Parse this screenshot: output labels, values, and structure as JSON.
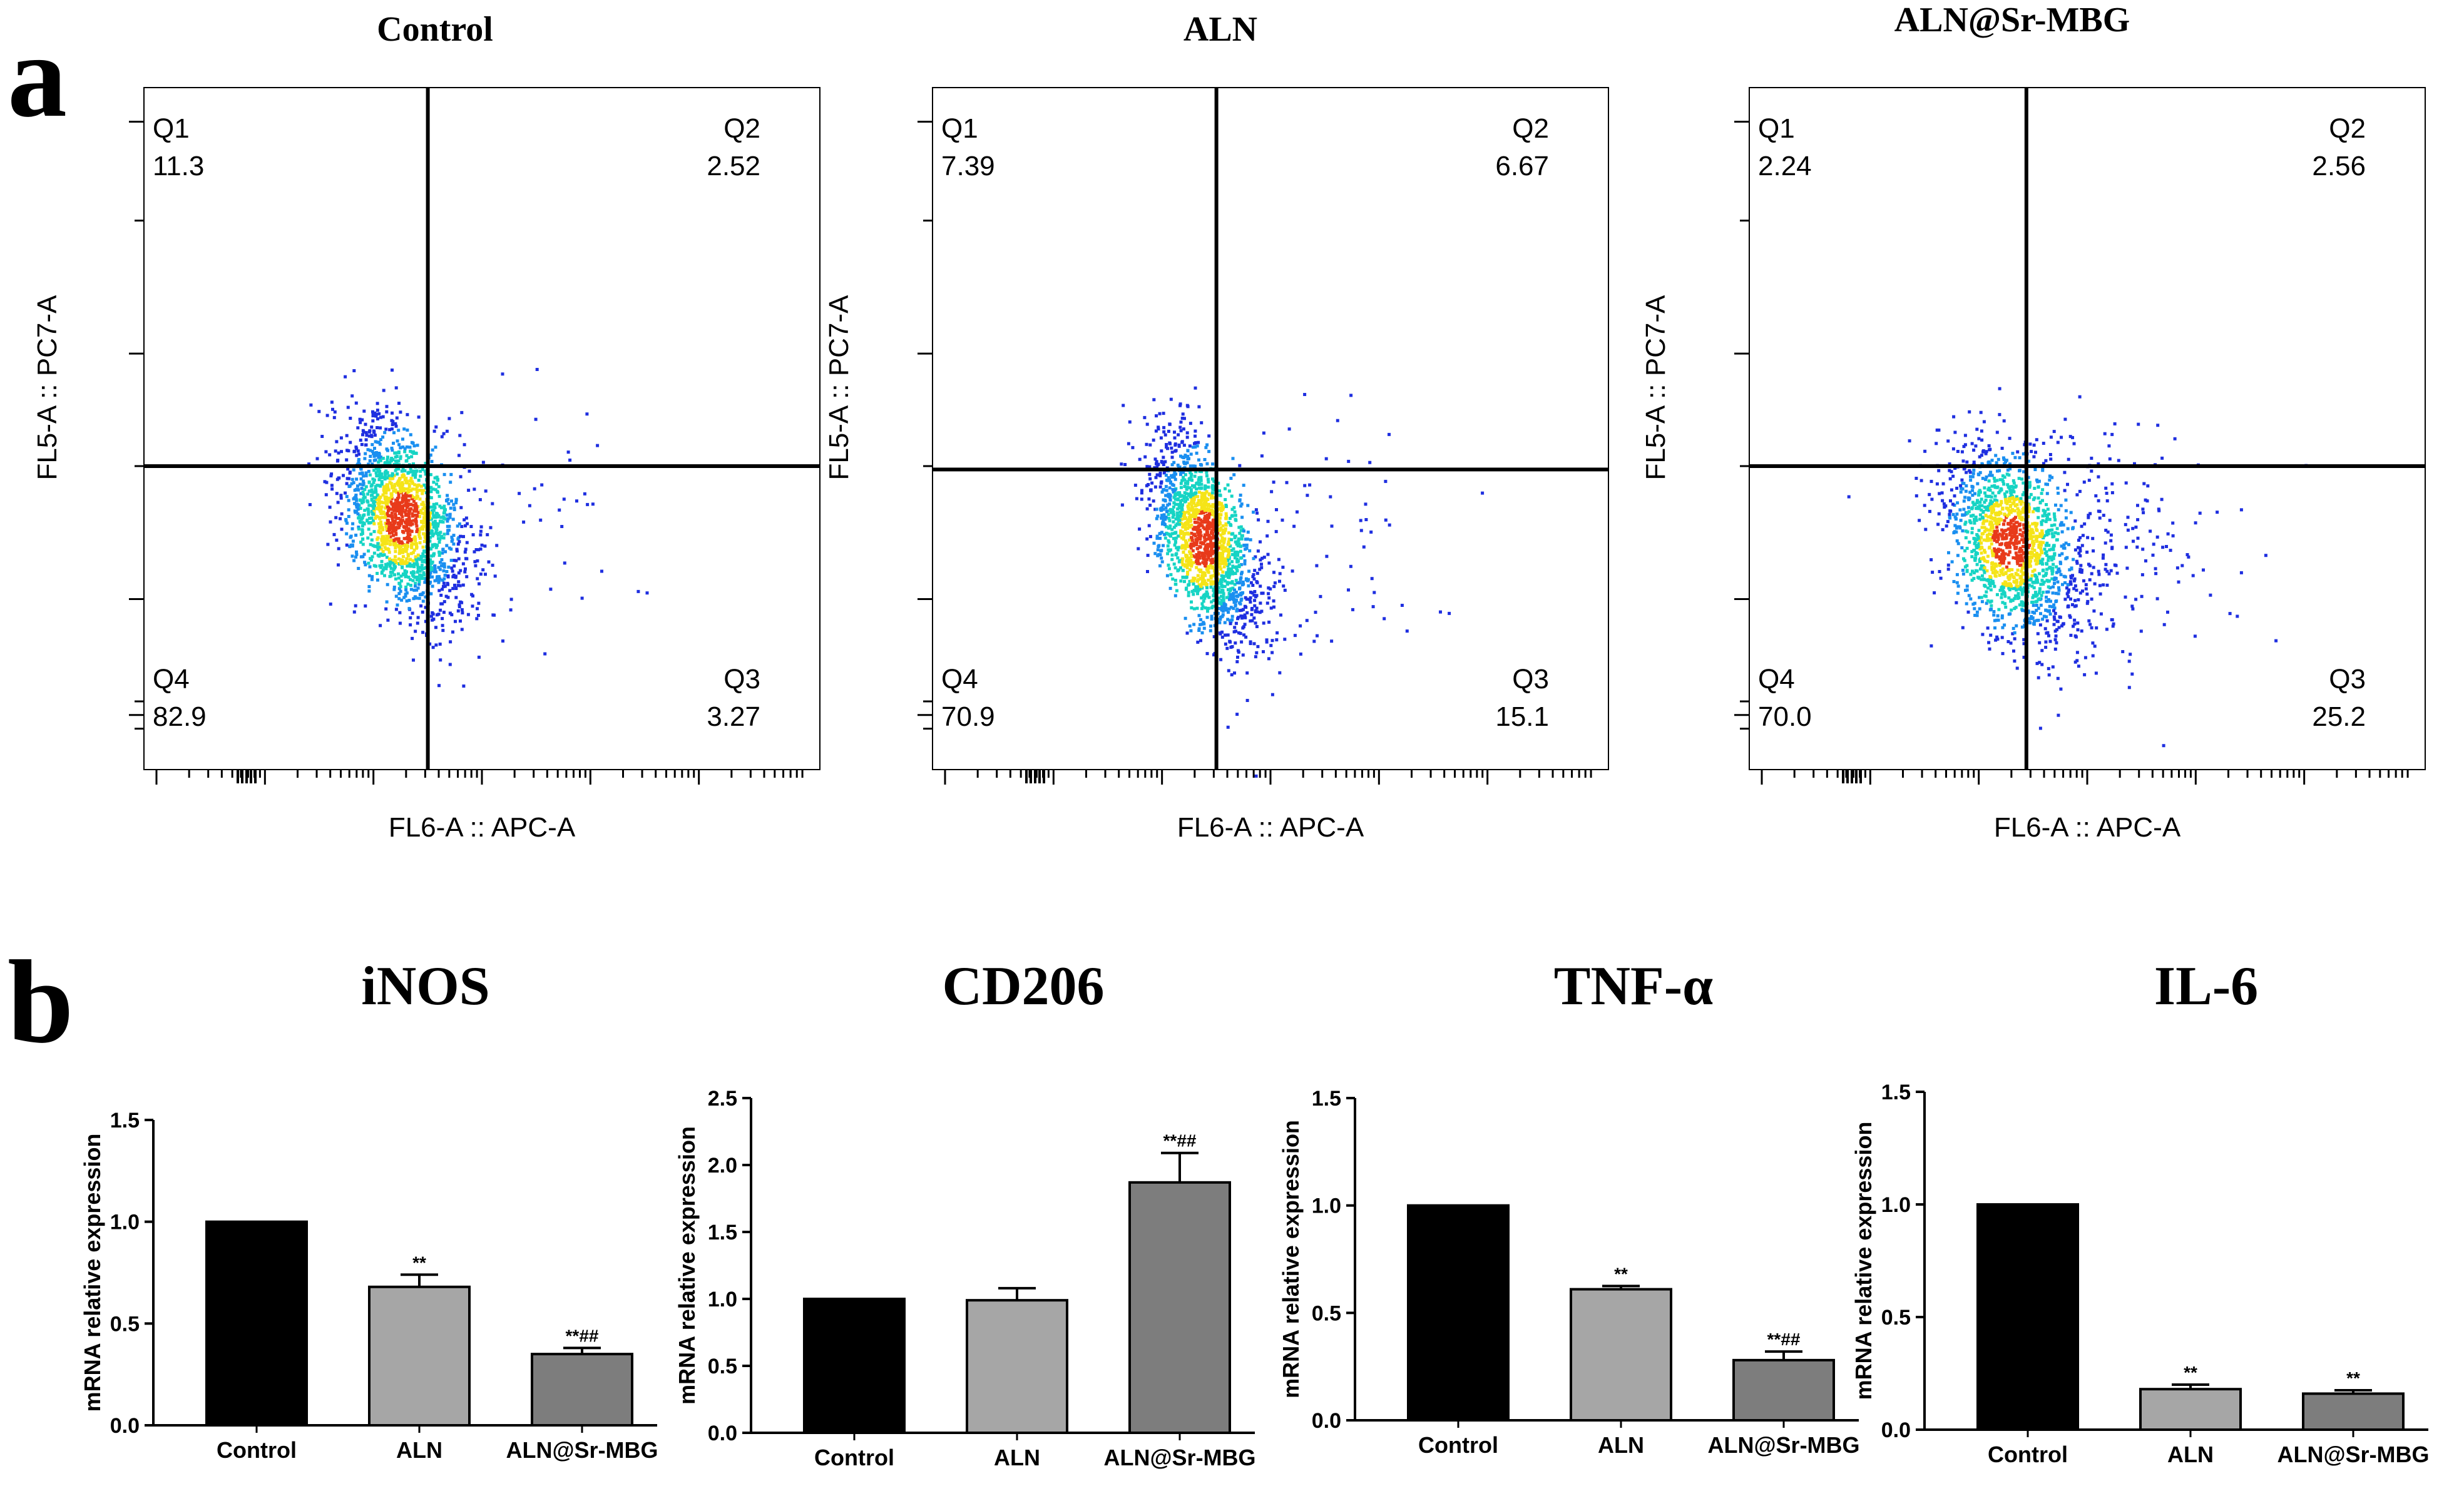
{
  "panels": {
    "a": "a",
    "b": "b"
  },
  "colors": {
    "pop_low": "#1f2fe0",
    "pop_mid": "#16d4c4",
    "pop_high": "#f5e418",
    "pop_core": "#e83a1a",
    "bar_control": "#000000",
    "bar_aln": "#a6a6a6",
    "bar_sr": "#7d7d7d"
  },
  "chart_data": [
    {
      "type": "scatter",
      "panel": "a",
      "title": "Control",
      "xlabel": "FL6-A :: APC-A",
      "ylabel": "FL5-A :: PC7-A",
      "gate": {
        "x": 0.42,
        "y": 0.555
      },
      "population": {
        "cx": 0.38,
        "cy": 0.63,
        "sx": 0.045,
        "sy": 0.07,
        "rho": 0.45,
        "n": 1700,
        "tail": 0.04
      },
      "quadrants": [
        {
          "name": "Q1",
          "value": "11.3",
          "position": "top-left"
        },
        {
          "name": "Q2",
          "value": "2.52",
          "position": "top-right"
        },
        {
          "name": "Q4",
          "value": "82.9",
          "position": "bottom-left"
        },
        {
          "name": "Q3",
          "value": "3.27",
          "position": "bottom-right"
        }
      ]
    },
    {
      "type": "scatter",
      "panel": "a",
      "title": "ALN",
      "xlabel": "FL6-A :: APC-A",
      "ylabel": "FL5-A :: PC7-A",
      "gate": {
        "x": 0.42,
        "y": 0.56
      },
      "population": {
        "cx": 0.4,
        "cy": 0.66,
        "sx": 0.04,
        "sy": 0.075,
        "rho": 0.55,
        "n": 1700,
        "tail": 0.05
      },
      "quadrants": [
        {
          "name": "Q1",
          "value": "7.39",
          "position": "top-left"
        },
        {
          "name": "Q2",
          "value": "6.67",
          "position": "top-right"
        },
        {
          "name": "Q4",
          "value": "70.9",
          "position": "bottom-left"
        },
        {
          "name": "Q3",
          "value": "15.1",
          "position": "bottom-right"
        }
      ]
    },
    {
      "type": "scatter",
      "panel": "a",
      "title": "ALN@Sr-MBG",
      "xlabel": "FL6-A :: APC-A",
      "ylabel": "FL5-A :: PC7-A",
      "gate": {
        "x": 0.41,
        "y": 0.555
      },
      "population": {
        "cx": 0.385,
        "cy": 0.665,
        "sx": 0.05,
        "sy": 0.07,
        "rho": 0.35,
        "n": 1700,
        "tail": 0.12
      },
      "quadrants": [
        {
          "name": "Q1",
          "value": "2.24",
          "position": "top-left"
        },
        {
          "name": "Q2",
          "value": "2.56",
          "position": "top-right"
        },
        {
          "name": "Q4",
          "value": "70.0",
          "position": "bottom-left"
        },
        {
          "name": "Q3",
          "value": "25.2",
          "position": "bottom-right"
        }
      ]
    },
    {
      "type": "bar",
      "panel": "b",
      "title": "iNOS",
      "ylabel": "mRNA relative expression",
      "ylim": [
        0,
        1.5
      ],
      "yticks": [
        "0.0",
        "0.5",
        "1.0",
        "1.5"
      ],
      "categories": [
        "Control",
        "ALN",
        "ALN@Sr-MBG"
      ],
      "values": [
        1.0,
        0.68,
        0.35
      ],
      "errors": [
        0,
        0.06,
        0.03
      ],
      "annotations": [
        "",
        "**",
        "**##"
      ]
    },
    {
      "type": "bar",
      "panel": "b",
      "title": "CD206",
      "ylabel": "mRNA relative expression",
      "ylim": [
        0,
        2.5
      ],
      "yticks": [
        "0.0",
        "0.5",
        "1.0",
        "1.5",
        "2.0",
        "2.5"
      ],
      "categories": [
        "Control",
        "ALN",
        "ALN@Sr-MBG"
      ],
      "values": [
        1.0,
        0.99,
        1.87
      ],
      "errors": [
        0,
        0.09,
        0.22
      ],
      "annotations": [
        "",
        "",
        "**##"
      ]
    },
    {
      "type": "bar",
      "panel": "b",
      "title": "TNF-α",
      "ylabel": "mRNA relative expression",
      "ylim": [
        0,
        1.5
      ],
      "yticks": [
        "0.0",
        "0.5",
        "1.0",
        "1.5"
      ],
      "categories": [
        "Control",
        "ALN",
        "ALN@Sr-MBG"
      ],
      "values": [
        1.0,
        0.61,
        0.28
      ],
      "errors": [
        0,
        0.015,
        0.04
      ],
      "annotations": [
        "",
        "**",
        "**##"
      ]
    },
    {
      "type": "bar",
      "panel": "b",
      "title": "IL-6",
      "ylabel": "mRNA relative expression",
      "ylim": [
        0,
        1.5
      ],
      "yticks": [
        "0.0",
        "0.5",
        "1.0",
        "1.5"
      ],
      "categories": [
        "Control",
        "ALN",
        "ALN@Sr-MBG"
      ],
      "values": [
        1.0,
        0.18,
        0.16
      ],
      "errors": [
        0,
        0.02,
        0.015
      ],
      "annotations": [
        "",
        "**",
        "**"
      ]
    }
  ]
}
